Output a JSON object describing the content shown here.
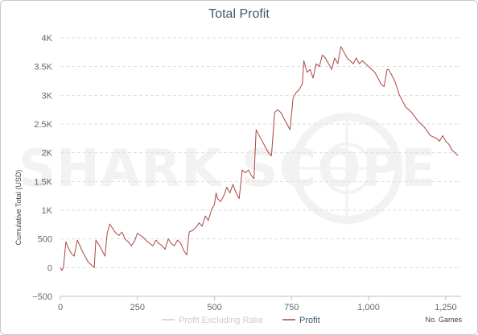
{
  "chart_data": {
    "type": "line",
    "title": "Total Profit",
    "xlabel": "No. Games",
    "ylabel": "Cumulative Total (USD)",
    "xlim": [
      0,
      1300
    ],
    "ylim": [
      -500,
      4000
    ],
    "x_ticks": [
      0,
      250,
      500,
      750,
      1000,
      1250
    ],
    "x_tick_labels": [
      "0",
      "250",
      "500",
      "750",
      "1,000",
      "1,250"
    ],
    "y_ticks": [
      -500,
      0,
      500,
      1000,
      1500,
      2000,
      2500,
      3000,
      3500,
      4000
    ],
    "y_tick_labels": [
      "−500",
      "0",
      "500",
      "1K",
      "1.5K",
      "2K",
      "2.5K",
      "3K",
      "3.5K",
      "4K"
    ],
    "grid": true,
    "legend_position": "bottom",
    "watermark": "SHARK SCOPE",
    "series": [
      {
        "name": "Profit Excluding Rake",
        "color": "#cccccc",
        "visible": false,
        "x": [],
        "y": []
      },
      {
        "name": "Profit",
        "color": "#aa4643",
        "visible": true,
        "x": [
          0,
          5,
          10,
          18,
          25,
          35,
          45,
          55,
          62,
          70,
          80,
          90,
          100,
          110,
          115,
          125,
          135,
          145,
          152,
          160,
          170,
          180,
          190,
          200,
          210,
          220,
          230,
          240,
          250,
          260,
          270,
          280,
          290,
          300,
          310,
          320,
          330,
          340,
          350,
          360,
          370,
          380,
          390,
          400,
          410,
          418,
          430,
          440,
          450,
          460,
          470,
          480,
          490,
          500,
          505,
          510,
          520,
          530,
          540,
          550,
          560,
          570,
          580,
          590,
          600,
          610,
          620,
          628,
          635,
          645,
          655,
          665,
          675,
          685,
          695,
          705,
          715,
          725,
          735,
          745,
          755,
          765,
          775,
          785,
          790,
          800,
          810,
          820,
          830,
          840,
          850,
          860,
          870,
          880,
          890,
          900,
          910,
          915,
          920,
          930,
          940,
          950,
          960,
          970,
          980,
          990,
          1000,
          1010,
          1020,
          1030,
          1040,
          1050,
          1060,
          1065,
          1075,
          1085,
          1100,
          1120,
          1140,
          1160,
          1180,
          1200,
          1220,
          1230,
          1240,
          1250,
          1260,
          1270,
          1280,
          1290
        ],
        "y": [
          0,
          -50,
          0,
          450,
          350,
          250,
          200,
          480,
          400,
          300,
          200,
          100,
          50,
          0,
          480,
          400,
          300,
          200,
          600,
          760,
          680,
          600,
          560,
          620,
          500,
          450,
          380,
          450,
          600,
          560,
          520,
          460,
          420,
          380,
          480,
          420,
          380,
          320,
          500,
          420,
          380,
          480,
          430,
          300,
          220,
          620,
          650,
          700,
          780,
          720,
          900,
          820,
          1000,
          1100,
          1300,
          1200,
          1150,
          1250,
          1400,
          1300,
          1450,
          1300,
          1200,
          1700,
          1650,
          1700,
          1600,
          1550,
          2400,
          2300,
          2200,
          2100,
          2000,
          1950,
          2700,
          2750,
          2700,
          2600,
          2500,
          2400,
          2950,
          3050,
          3100,
          3200,
          3600,
          3400,
          3450,
          3300,
          3550,
          3500,
          3700,
          3650,
          3550,
          3450,
          3650,
          3550,
          3850,
          3800,
          3750,
          3650,
          3600,
          3550,
          3650,
          3550,
          3600,
          3550,
          3500,
          3450,
          3400,
          3300,
          3200,
          3150,
          3450,
          3450,
          3350,
          3250,
          3000,
          2800,
          2700,
          2550,
          2450,
          2300,
          2250,
          2200,
          2300,
          2200,
          2150,
          2050,
          2000,
          1950
        ]
      }
    ]
  }
}
